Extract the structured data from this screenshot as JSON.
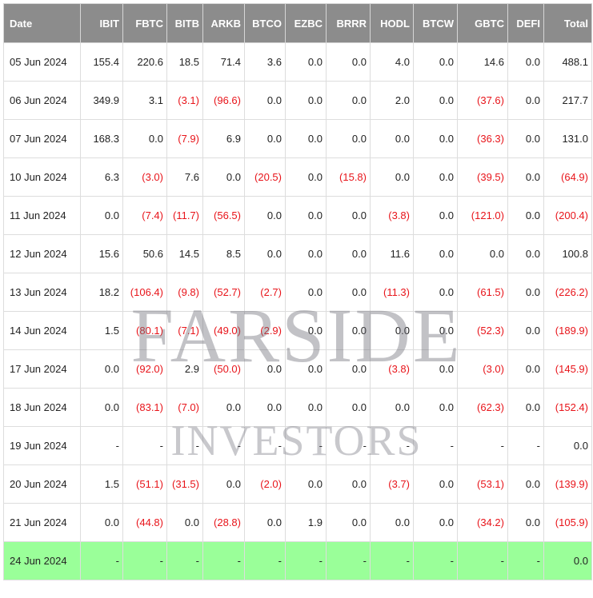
{
  "watermark": {
    "line1": "FARSIDE",
    "line2": "INVESTORS"
  },
  "colors": {
    "header_bg": "#8c8c8c",
    "header_text": "#ffffff",
    "negative_text": "#e8141a",
    "highlight_row": "#9aff99",
    "grid": "#dddddd"
  },
  "table": {
    "headers": [
      "Date",
      "IBIT",
      "FBTC",
      "BITB",
      "ARKB",
      "BTCO",
      "EZBC",
      "BRRR",
      "HODL",
      "BTCW",
      "GBTC",
      "DEFI",
      "Total"
    ],
    "rows": [
      {
        "cells": [
          "05 Jun 2024",
          "155.4",
          "220.6",
          "18.5",
          "71.4",
          "3.6",
          "0.0",
          "0.0",
          "4.0",
          "0.0",
          "14.6",
          "0.0",
          "488.1"
        ],
        "highlight": false
      },
      {
        "cells": [
          "06 Jun 2024",
          "349.9",
          "3.1",
          "(3.1)",
          "(96.6)",
          "0.0",
          "0.0",
          "0.0",
          "2.0",
          "0.0",
          "(37.6)",
          "0.0",
          "217.7"
        ],
        "highlight": false
      },
      {
        "cells": [
          "07 Jun 2024",
          "168.3",
          "0.0",
          "(7.9)",
          "6.9",
          "0.0",
          "0.0",
          "0.0",
          "0.0",
          "0.0",
          "(36.3)",
          "0.0",
          "131.0"
        ],
        "highlight": false
      },
      {
        "cells": [
          "10 Jun 2024",
          "6.3",
          "(3.0)",
          "7.6",
          "0.0",
          "(20.5)",
          "0.0",
          "(15.8)",
          "0.0",
          "0.0",
          "(39.5)",
          "0.0",
          "(64.9)"
        ],
        "highlight": false
      },
      {
        "cells": [
          "11 Jun 2024",
          "0.0",
          "(7.4)",
          "(11.7)",
          "(56.5)",
          "0.0",
          "0.0",
          "0.0",
          "(3.8)",
          "0.0",
          "(121.0)",
          "0.0",
          "(200.4)"
        ],
        "highlight": false
      },
      {
        "cells": [
          "12 Jun 2024",
          "15.6",
          "50.6",
          "14.5",
          "8.5",
          "0.0",
          "0.0",
          "0.0",
          "11.6",
          "0.0",
          "0.0",
          "0.0",
          "100.8"
        ],
        "highlight": false
      },
      {
        "cells": [
          "13 Jun 2024",
          "18.2",
          "(106.4)",
          "(9.8)",
          "(52.7)",
          "(2.7)",
          "0.0",
          "0.0",
          "(11.3)",
          "0.0",
          "(61.5)",
          "0.0",
          "(226.2)"
        ],
        "highlight": false
      },
      {
        "cells": [
          "14 Jun 2024",
          "1.5",
          "(80.1)",
          "(7.1)",
          "(49.0)",
          "(2.9)",
          "0.0",
          "0.0",
          "0.0",
          "0.0",
          "(52.3)",
          "0.0",
          "(189.9)"
        ],
        "highlight": false
      },
      {
        "cells": [
          "17 Jun 2024",
          "0.0",
          "(92.0)",
          "2.9",
          "(50.0)",
          "0.0",
          "0.0",
          "0.0",
          "(3.8)",
          "0.0",
          "(3.0)",
          "0.0",
          "(145.9)"
        ],
        "highlight": false
      },
      {
        "cells": [
          "18 Jun 2024",
          "0.0",
          "(83.1)",
          "(7.0)",
          "0.0",
          "0.0",
          "0.0",
          "0.0",
          "0.0",
          "0.0",
          "(62.3)",
          "0.0",
          "(152.4)"
        ],
        "highlight": false
      },
      {
        "cells": [
          "19 Jun 2024",
          "-",
          "-",
          "-",
          "-",
          "-",
          "-",
          "-",
          "-",
          "-",
          "-",
          "-",
          "0.0"
        ],
        "highlight": false
      },
      {
        "cells": [
          "20 Jun 2024",
          "1.5",
          "(51.1)",
          "(31.5)",
          "0.0",
          "(2.0)",
          "0.0",
          "0.0",
          "(3.7)",
          "0.0",
          "(53.1)",
          "0.0",
          "(139.9)"
        ],
        "highlight": false
      },
      {
        "cells": [
          "21 Jun 2024",
          "0.0",
          "(44.8)",
          "0.0",
          "(28.8)",
          "0.0",
          "1.9",
          "0.0",
          "0.0",
          "0.0",
          "(34.2)",
          "0.0",
          "(105.9)"
        ],
        "highlight": false
      },
      {
        "cells": [
          "24 Jun 2024",
          "-",
          "-",
          "-",
          "-",
          "-",
          "-",
          "-",
          "-",
          "-",
          "-",
          "-",
          "0.0"
        ],
        "highlight": true
      }
    ]
  }
}
